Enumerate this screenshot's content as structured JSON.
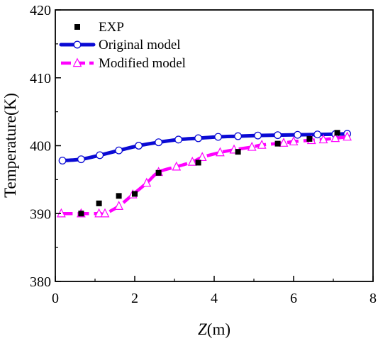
{
  "chart_data": {
    "type": "line",
    "title": "",
    "xlabel_italic": "Z",
    "xlabel_rest": "(m)",
    "ylabel": "Temperature(K)",
    "xlim": [
      0,
      8
    ],
    "ylim": [
      380,
      420
    ],
    "xticks": [
      0,
      2,
      4,
      6,
      8
    ],
    "yticks": [
      380,
      390,
      400,
      410,
      420
    ],
    "grid": false,
    "legend_position": "top-left",
    "series": [
      {
        "name": "EXP",
        "style": "markers",
        "marker": "square",
        "color": "#000000",
        "x": [
          0.65,
          1.1,
          1.6,
          2.0,
          2.6,
          3.6,
          4.6,
          5.6,
          6.4,
          7.1
        ],
        "y": [
          390.0,
          391.5,
          392.6,
          392.9,
          396.0,
          397.5,
          399.1,
          400.3,
          401.0,
          401.9
        ]
      },
      {
        "name": "Original model",
        "style": "line+markers",
        "marker": "circle",
        "color": "#0a0ad4",
        "x": [
          0.18,
          0.65,
          1.12,
          1.6,
          2.1,
          2.6,
          3.1,
          3.6,
          4.1,
          4.6,
          5.1,
          5.6,
          6.1,
          6.6,
          7.05,
          7.35
        ],
        "y": [
          397.8,
          398.0,
          398.6,
          399.3,
          400.0,
          400.5,
          400.9,
          401.1,
          401.3,
          401.4,
          401.5,
          401.55,
          401.6,
          401.65,
          401.7,
          401.75
        ]
      },
      {
        "name": "Modified model",
        "style": "dashed+markers",
        "marker": "triangle",
        "color": "#ff00ff",
        "x": [
          0.15,
          0.65,
          1.1,
          1.25,
          1.6,
          1.95,
          2.3,
          2.6,
          3.05,
          3.45,
          3.7,
          4.15,
          4.5,
          4.95,
          5.2,
          5.75,
          6.0,
          6.45,
          6.75,
          7.05,
          7.35
        ],
        "y": [
          390.0,
          390.0,
          390.0,
          390.0,
          391.1,
          392.8,
          394.5,
          396.1,
          396.9,
          397.6,
          398.3,
          399.0,
          399.4,
          399.8,
          400.1,
          400.4,
          400.6,
          400.8,
          400.9,
          401.1,
          401.3
        ]
      }
    ]
  }
}
